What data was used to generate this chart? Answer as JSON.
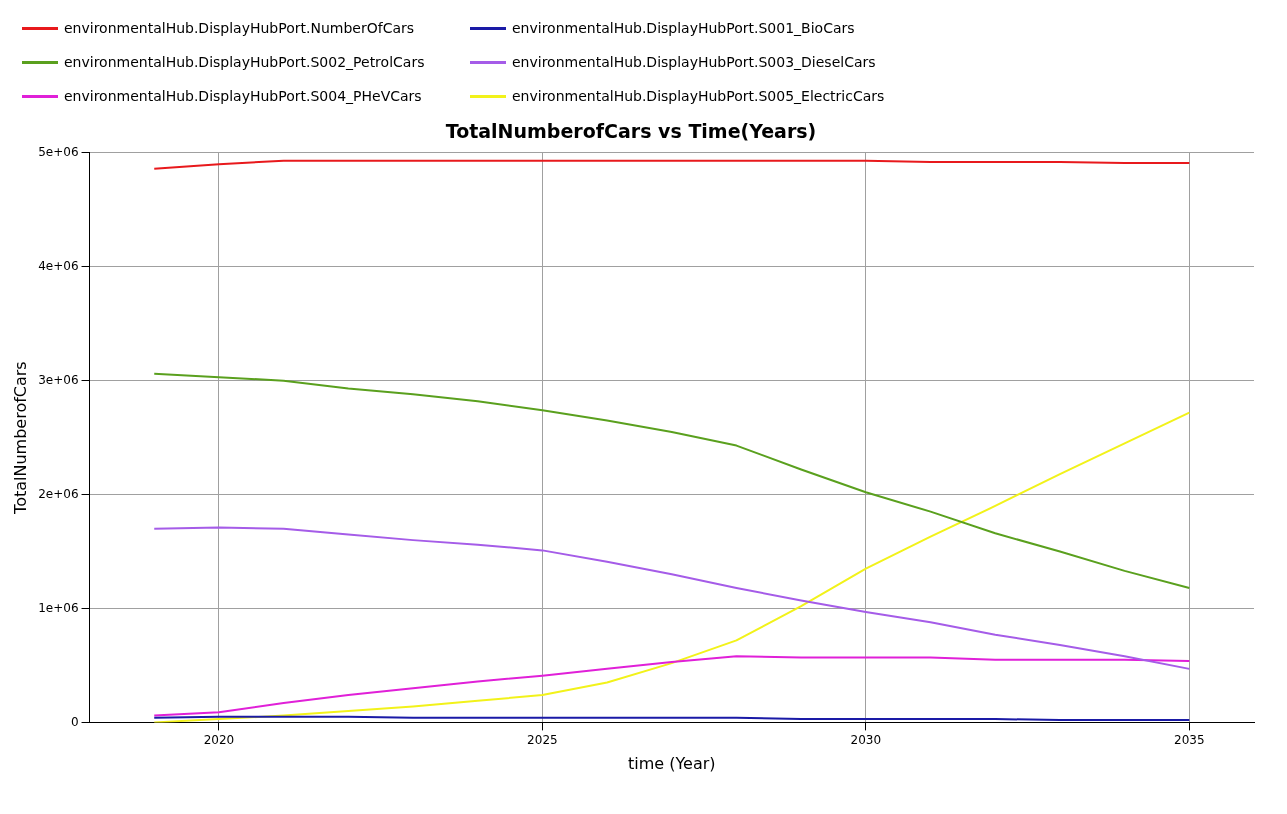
{
  "chart_data": {
    "type": "line",
    "title": "TotalNumberofCars vs Time(Years)",
    "xlabel": "time (Year)",
    "ylabel": "TotalNumberofCars",
    "x": [
      2019,
      2020,
      2021,
      2022,
      2023,
      2024,
      2025,
      2026,
      2027,
      2028,
      2029,
      2030,
      2031,
      2032,
      2033,
      2034,
      2035
    ],
    "series": [
      {
        "name": "environmentalHub.DisplayHubPort.NumberOfCars",
        "color": "#e8191c",
        "values": [
          4860000,
          4900000,
          4930000,
          4930000,
          4930000,
          4930000,
          4930000,
          4930000,
          4930000,
          4930000,
          4930000,
          4930000,
          4920000,
          4920000,
          4920000,
          4910000,
          4910000
        ]
      },
      {
        "name": "environmentalHub.DisplayHubPort.S001_BioCars",
        "color": "#1a1aa6",
        "values": [
          40000,
          50000,
          50000,
          50000,
          40000,
          40000,
          40000,
          40000,
          40000,
          40000,
          30000,
          30000,
          30000,
          30000,
          20000,
          20000,
          20000
        ]
      },
      {
        "name": "environmentalHub.DisplayHubPort.S002_PetrolCars",
        "color": "#5aa01e",
        "values": [
          3060000,
          3030000,
          3000000,
          2930000,
          2880000,
          2820000,
          2740000,
          2650000,
          2550000,
          2430000,
          2220000,
          2020000,
          1850000,
          1660000,
          1500000,
          1330000,
          1180000
        ]
      },
      {
        "name": "environmentalHub.DisplayHubPort.S003_DieselCars",
        "color": "#a55ce8",
        "values": [
          1700000,
          1710000,
          1700000,
          1650000,
          1600000,
          1560000,
          1510000,
          1410000,
          1300000,
          1180000,
          1070000,
          970000,
          880000,
          770000,
          680000,
          580000,
          470000
        ]
      },
      {
        "name": "environmentalHub.DisplayHubPort.S004_PHeVCars",
        "color": "#e020d8",
        "values": [
          60000,
          90000,
          170000,
          240000,
          300000,
          360000,
          410000,
          470000,
          530000,
          580000,
          570000,
          570000,
          570000,
          550000,
          550000,
          550000,
          540000
        ]
      },
      {
        "name": "environmentalHub.DisplayHubPort.S005_ElectricCars",
        "color": "#f2f21a",
        "values": [
          0,
          30000,
          60000,
          100000,
          140000,
          190000,
          240000,
          350000,
          520000,
          720000,
          1020000,
          1350000,
          1630000,
          1900000,
          2180000,
          2450000,
          2720000
        ]
      }
    ],
    "xlim": [
      2018,
      2036
    ],
    "xticks": [
      2020,
      2025,
      2030,
      2035
    ],
    "ylim": [
      0,
      5000000
    ],
    "yticks": [
      {
        "value": 0,
        "label": "0"
      },
      {
        "value": 1000000,
        "label": "1e+06"
      },
      {
        "value": 2000000,
        "label": "2e+06"
      },
      {
        "value": 3000000,
        "label": "3e+06"
      },
      {
        "value": 4000000,
        "label": "4e+06"
      },
      {
        "value": 5000000,
        "label": "5e+06"
      }
    ],
    "grid": true,
    "legend": "top left",
    "marker": "none",
    "line_style": "solid"
  }
}
